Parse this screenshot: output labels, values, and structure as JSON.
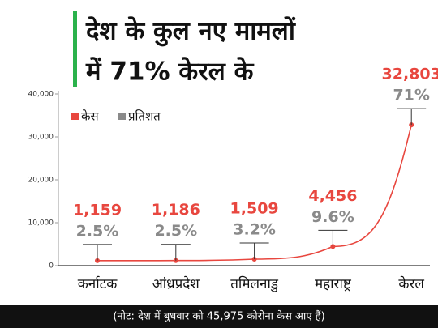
{
  "chart_data": {
    "type": "line",
    "title": [
      "देश के कुल नए मामलों",
      "में 71% केरल के"
    ],
    "categories": [
      "कर्नाटक",
      "आंध्रप्रदेश",
      "तमिलनाडु",
      "महाराष्ट्र",
      "केरल"
    ],
    "series": [
      {
        "name": "केस",
        "color": "#e8473f",
        "values": [
          1159,
          1186,
          1509,
          4456,
          32803
        ],
        "value_labels": [
          "1,159",
          "1,186",
          "1,509",
          "4,456",
          "32,803"
        ]
      },
      {
        "name": "प्रतिशत",
        "color": "#8a8a8a",
        "values": [
          2.5,
          2.5,
          3.2,
          9.6,
          71
        ],
        "value_labels": [
          "2.5%",
          "2.5%",
          "3.2%",
          "9.6%",
          "71%"
        ]
      }
    ],
    "ylim": [
      0,
      40000
    ],
    "yticks": [
      0,
      {
        "value": 10000,
        "label": "10,000"
      },
      {
        "value": 20000,
        "label": "20,000"
      },
      {
        "value": 30000,
        "label": "30,000"
      },
      {
        "value": 40000,
        "label": "40,000"
      }
    ],
    "legend": "top-left",
    "note": "(नोट: देश में बुधवार को 45,975 कोरोना केस आए हैं)"
  }
}
